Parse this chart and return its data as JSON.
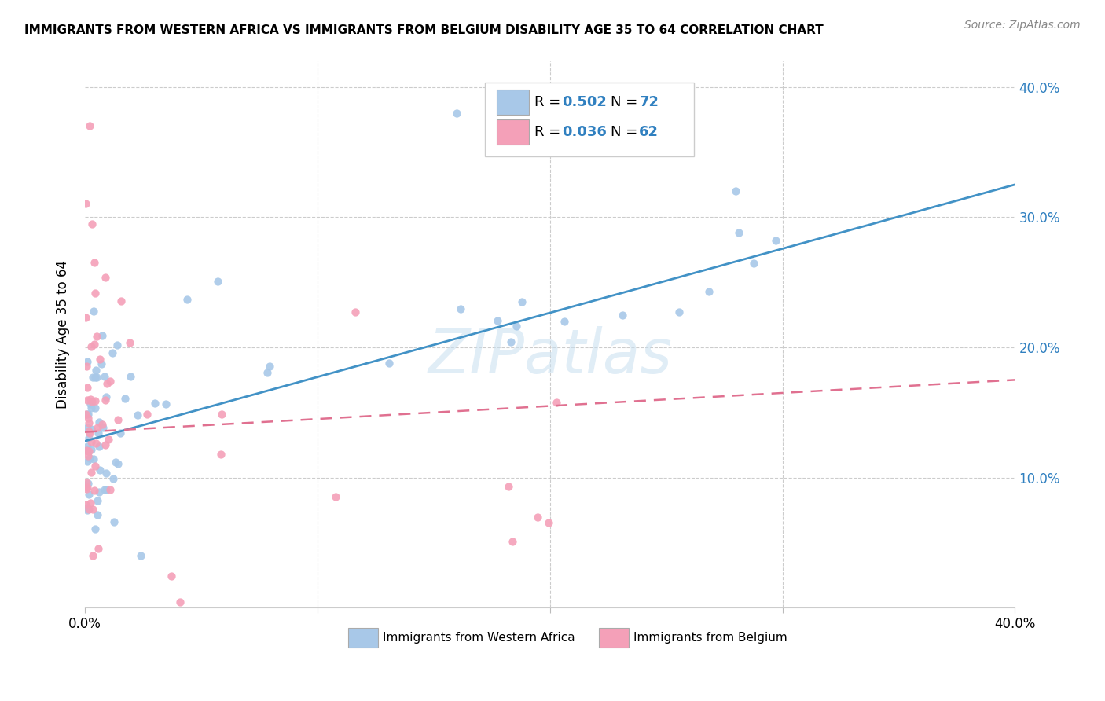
{
  "title": "IMMIGRANTS FROM WESTERN AFRICA VS IMMIGRANTS FROM BELGIUM DISABILITY AGE 35 TO 64 CORRELATION CHART",
  "source": "Source: ZipAtlas.com",
  "ylabel_label": "Disability Age 35 to 64",
  "x_min": 0.0,
  "x_max": 0.4,
  "y_min": 0.0,
  "y_max": 0.42,
  "color_blue": "#a8c8e8",
  "color_pink": "#f4a0b8",
  "color_blue_line": "#4292c6",
  "color_pink_line": "#e07090",
  "color_blue_text": "#3080c0",
  "watermark": "ZIPatlas",
  "legend_label1": "Immigrants from Western Africa",
  "legend_label2": "Immigrants from Belgium",
  "blue_line_x0": 0.0,
  "blue_line_y0": 0.128,
  "blue_line_x1": 0.4,
  "blue_line_y1": 0.325,
  "pink_line_x0": 0.0,
  "pink_line_y0": 0.135,
  "pink_line_x1": 0.4,
  "pink_line_y1": 0.175
}
